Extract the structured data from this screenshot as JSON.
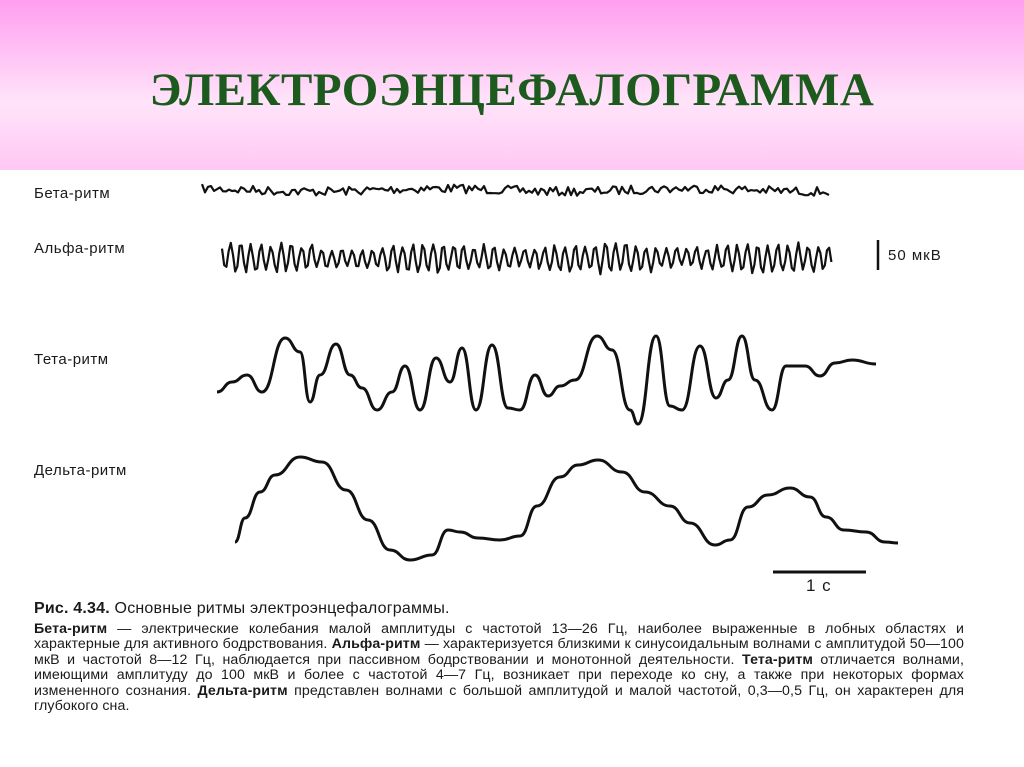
{
  "title": "ЭЛЕКТРОЭНЦЕФАЛОГРАММА",
  "rhythms": {
    "beta": "Бета-ритм",
    "alpha": "Альфа-ритм",
    "theta": "Тета-ритм",
    "delta": "Дельта-ритм"
  },
  "amplitude_scale": "50 мкВ",
  "time_scale": "1 с",
  "caption": {
    "fig_number": "Рис. 4.34.",
    "fig_title": "Основные ритмы электроэнцефалограммы.",
    "beta_term": "Бета-ритм",
    "beta_text": " — электрические колебания малой амплитуды с частотой 13—26 Гц, наиболее выраженные в лобных областях и характерные для активного бодрствования. ",
    "alpha_term": "Альфа-ритм",
    "alpha_text": " — характеризуется близкими к синусоидальным волнами с амплитудой 50—100 мкВ и частотой 8—12 Гц, наблюдается при пассивном бодрствовании и монотонной деятельности. ",
    "theta_term": "Тета-ритм",
    "theta_text": " отличается волнами, имеющими амплитуду до 100 мкВ и более с частотой 4—7 Гц, возникает при переходе ко сну, а также при некоторых формах измененного сознания. ",
    "delta_term": "Дельта-ритм",
    "delta_text": " представлен волнами с большой амплитудой и малой частотой, 0,3—0,5 Гц, он характерен для глубокого сна."
  }
}
